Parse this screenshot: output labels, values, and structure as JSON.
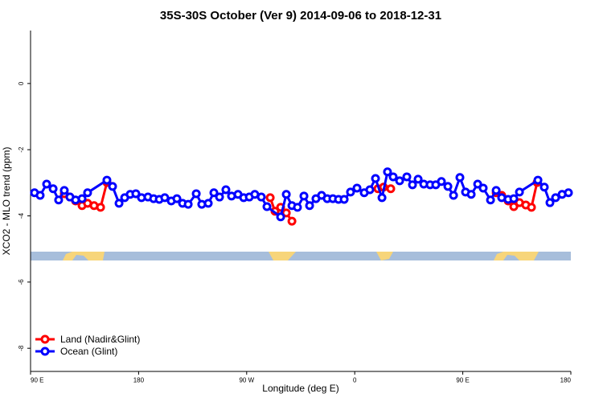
{
  "chart_data": {
    "type": "line",
    "title": "35S-30S October (Ver 9)   2014-09-06 to 2018-12-31",
    "x_label": "Longitude (deg E)",
    "y_label": "XCO2 - MLO trend (ppm)",
    "xlim": [
      90,
      540
    ],
    "xticks": [
      {
        "value": 90,
        "label": "90 E"
      },
      180,
      {
        "value": 270,
        "label": "90 W"
      },
      {
        "value": 360,
        "label": "0"
      },
      {
        "value": 450,
        "label": "90 E"
      },
      {
        "value": 540,
        "label": "180"
      }
    ],
    "ylim": [
      -8.7,
      1.6
    ],
    "yticks": [
      0,
      -2,
      -4,
      -6,
      -8
    ],
    "legend": "bottom-left",
    "series": [
      {
        "name": "Land (Nadir&Glint)",
        "color": "#ff0000",
        "x": [
          118.1,
          122.8,
          127.5,
          132.9,
          137.5,
          142.9,
          148.3,
          153.6,
          null,
          289.6,
          293.6,
          298.3,
          303.0,
          307.7,
          null,
          379.3,
          384.0,
          390.0,
          null,
          477.8,
          482.4,
          487.8,
          492.5,
          497.2,
          502.5,
          507.2,
          511.9
        ],
        "values": [
          -3.33,
          -3.43,
          -3.55,
          -3.69,
          -3.62,
          -3.69,
          -3.74,
          -2.99,
          null,
          -3.45,
          -3.86,
          -3.74,
          -3.91,
          -4.16,
          null,
          -3.18,
          -3.13,
          -3.18,
          null,
          -3.3,
          -3.38,
          -3.55,
          -3.72,
          -3.6,
          -3.67,
          -3.74,
          -2.99
        ]
      },
      {
        "name": "Ocean (Glint)",
        "color": "#0000ff",
        "x": [
          93.3,
          98.0,
          103.4,
          108.8,
          113.4,
          118.1,
          122.8,
          127.5,
          132.9,
          137.5,
          153.6,
          158.3,
          163.7,
          168.4,
          173.0,
          177.7,
          182.4,
          187.8,
          192.5,
          197.2,
          201.8,
          207.2,
          211.9,
          216.6,
          221.3,
          228.0,
          232.6,
          238.0,
          242.7,
          247.4,
          252.7,
          257.4,
          262.8,
          267.5,
          272.2,
          276.8,
          282.2,
          286.9,
          298.3,
          303.0,
          307.7,
          312.3,
          317.7,
          322.4,
          327.7,
          332.4,
          337.1,
          341.8,
          346.5,
          351.2,
          356.5,
          361.9,
          367.9,
          372.6,
          377.3,
          382.7,
          387.3,
          392.0,
          397.4,
          403.4,
          408.1,
          412.8,
          417.5,
          422.8,
          427.5,
          432.2,
          437.6,
          442.3,
          447.6,
          452.3,
          457.0,
          462.4,
          467.0,
          473.1,
          477.8,
          482.4,
          487.8,
          492.5,
          497.2,
          512.6,
          517.9,
          522.6,
          527.3,
          532.7,
          538.0
        ],
        "values": [
          -3.3,
          -3.38,
          -3.04,
          -3.18,
          -3.52,
          -3.23,
          -3.43,
          -3.52,
          -3.48,
          -3.3,
          -2.92,
          -3.11,
          -3.62,
          -3.45,
          -3.35,
          -3.33,
          -3.45,
          -3.43,
          -3.48,
          -3.5,
          -3.45,
          -3.55,
          -3.48,
          -3.62,
          -3.65,
          -3.33,
          -3.65,
          -3.62,
          -3.3,
          -3.43,
          -3.21,
          -3.4,
          -3.35,
          -3.45,
          -3.43,
          -3.35,
          -3.43,
          -3.72,
          -4.03,
          -3.35,
          -3.69,
          -3.74,
          -3.4,
          -3.69,
          -3.48,
          -3.38,
          -3.48,
          -3.48,
          -3.5,
          -3.5,
          -3.28,
          -3.16,
          -3.3,
          -3.21,
          -2.87,
          -3.45,
          -2.67,
          -2.82,
          -2.94,
          -2.82,
          -3.06,
          -2.89,
          -3.04,
          -3.06,
          -3.06,
          -2.96,
          -3.11,
          -3.38,
          -2.84,
          -3.28,
          -3.35,
          -3.04,
          -3.16,
          -3.52,
          -3.23,
          -3.45,
          -3.5,
          -3.48,
          -3.28,
          -2.92,
          -3.13,
          -3.6,
          -3.45,
          -3.35,
          -3.3
        ]
      }
    ]
  }
}
